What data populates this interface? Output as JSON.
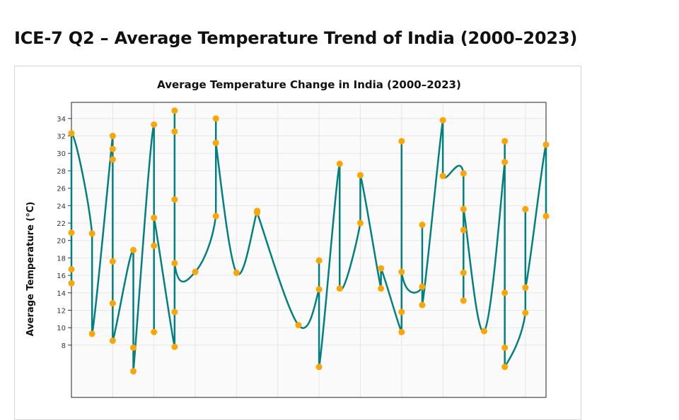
{
  "page": {
    "title": "ICE-7 Q2 – Average Temperature Trend of India (2000–2023)"
  },
  "colors": {
    "line": "#008080",
    "marker": "#FFA500",
    "plot_bg": "#fafafa",
    "grid": "#e6e6e6"
  },
  "chart_data": {
    "type": "line",
    "title": "Average Temperature Change in India (2000–2023)",
    "ylabel": "Average Temperature (°C)",
    "xlabel": "",
    "line_shape": "spline",
    "markers": true,
    "grid": true,
    "ylim": [
      2,
      35.85
    ],
    "xlim": [
      2000,
      2023
    ],
    "yticks": [
      8,
      10,
      12,
      14,
      16,
      18,
      20,
      22,
      24,
      26,
      28,
      30,
      32,
      34
    ],
    "points": [
      {
        "year": 2000,
        "values": [
          15.1,
          16.7,
          20.9,
          32.3
        ]
      },
      {
        "year": 2001,
        "values": [
          20.8,
          9.3
        ]
      },
      {
        "year": 2002,
        "values": [
          32.0,
          30.5,
          29.3,
          17.6,
          12.8,
          8.5
        ]
      },
      {
        "year": 2003,
        "values": [
          18.9,
          7.7,
          5.0
        ]
      },
      {
        "year": 2004,
        "values": [
          33.3,
          9.5,
          19.4,
          22.6
        ]
      },
      {
        "year": 2005,
        "values": [
          7.8,
          11.8,
          24.7,
          32.5,
          34.9,
          17.4
        ]
      },
      {
        "year": 2006,
        "values": [
          16.4
        ]
      },
      {
        "year": 2007,
        "values": [
          22.8,
          34.0,
          31.2
        ]
      },
      {
        "year": 2008,
        "values": [
          16.3
        ]
      },
      {
        "year": 2009,
        "values": [
          23.4,
          23.2
        ]
      },
      {
        "year": 2011,
        "values": [
          10.3
        ]
      },
      {
        "year": 2012,
        "values": [
          14.4,
          17.7,
          5.5
        ]
      },
      {
        "year": 2013,
        "values": [
          28.8,
          14.5
        ]
      },
      {
        "year": 2014,
        "values": [
          22.0,
          27.5
        ]
      },
      {
        "year": 2015,
        "values": [
          14.5,
          16.8
        ]
      },
      {
        "year": 2016,
        "values": [
          9.5,
          11.8,
          31.4,
          16.4
        ]
      },
      {
        "year": 2017,
        "values": [
          14.7,
          21.8,
          12.6
        ]
      },
      {
        "year": 2018,
        "values": [
          33.8,
          27.4
        ]
      },
      {
        "year": 2019,
        "values": [
          27.7,
          13.1,
          16.3,
          21.2,
          23.6
        ]
      },
      {
        "year": 2020,
        "values": [
          9.6
        ]
      },
      {
        "year": 2021,
        "values": [
          29.0,
          31.4,
          14.0,
          7.7,
          5.5
        ]
      },
      {
        "year": 2022,
        "values": [
          11.7,
          23.6,
          14.6
        ]
      },
      {
        "year": 2023,
        "values": [
          31.0,
          22.8
        ]
      }
    ]
  }
}
